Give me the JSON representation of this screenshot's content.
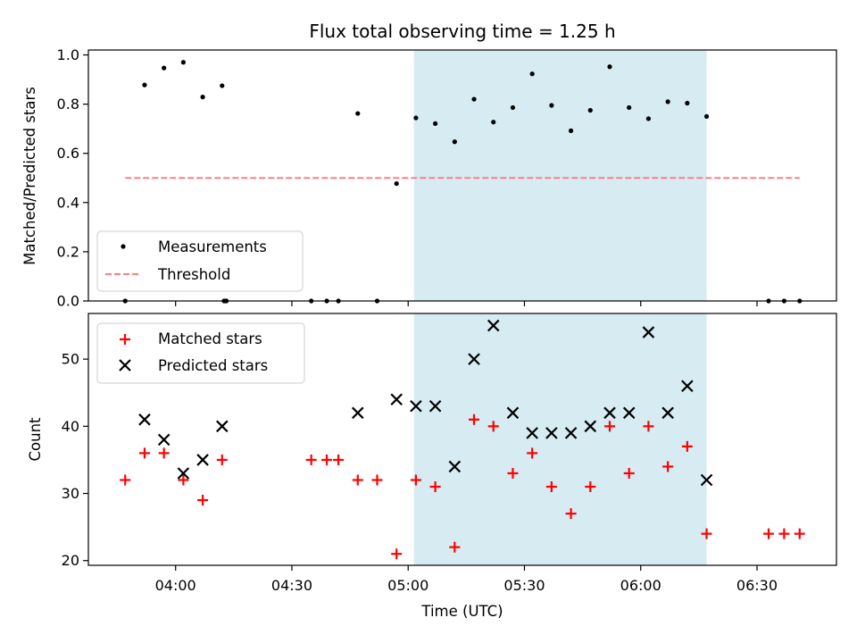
{
  "chart_data": {
    "title": "Flux total observing time = 1.25 h",
    "xlabel": "Time (UTC)",
    "x_tick_labels": [
      "04:00",
      "04:30",
      "05:00",
      "05:30",
      "06:00",
      "06:30"
    ],
    "x_tick_minutes": [
      240,
      270,
      300,
      330,
      360,
      390
    ],
    "xlim_minutes": [
      217.5,
      410.5
    ],
    "highlight_span_minutes": [
      301.5,
      377
    ],
    "highlight_color": "#add8e6",
    "panels": [
      {
        "type": "scatter",
        "ylabel": "Matched/Predicted stars",
        "ylim": [
          0,
          1.02
        ],
        "yticks": [
          0.0,
          0.2,
          0.4,
          0.6,
          0.8,
          1.0
        ],
        "ytick_labels": [
          "0.0",
          "0.2",
          "0.4",
          "0.6",
          "0.8",
          "1.0"
        ],
        "legend_position": "lower-left",
        "series": [
          {
            "name": "Measurements",
            "marker": "dot",
            "color": "#000000",
            "points": [
              [
                227,
                0.0
              ],
              [
                232,
                0.878
              ],
              [
                237,
                0.947
              ],
              [
                242,
                0.97
              ],
              [
                247,
                0.829
              ],
              [
                252,
                0.875
              ],
              [
                252.5,
                0.0
              ],
              [
                252.8,
                0.0
              ],
              [
                253.1,
                0.0
              ],
              [
                275,
                0.0
              ],
              [
                279,
                0.0
              ],
              [
                282,
                0.0
              ],
              [
                287,
                0.762
              ],
              [
                292,
                0.0
              ],
              [
                297,
                0.477
              ],
              [
                302,
                0.744
              ],
              [
                307,
                0.721
              ],
              [
                312,
                0.647
              ],
              [
                317,
                0.82
              ],
              [
                322,
                0.727
              ],
              [
                327,
                0.786
              ],
              [
                332,
                0.923
              ],
              [
                337,
                0.795
              ],
              [
                342,
                0.692
              ],
              [
                347,
                0.775
              ],
              [
                352,
                0.952
              ],
              [
                357,
                0.786
              ],
              [
                362,
                0.741
              ],
              [
                367,
                0.81
              ],
              [
                372,
                0.804
              ],
              [
                377,
                0.75
              ],
              [
                393,
                0.0
              ],
              [
                397,
                0.0
              ],
              [
                401,
                0.0
              ]
            ]
          },
          {
            "name": "Threshold",
            "marker": "dashed-line",
            "color": "#ff7f7f",
            "x_range": [
              227,
              401
            ],
            "y": 0.5
          }
        ]
      },
      {
        "type": "scatter",
        "ylabel": "Count",
        "ylim": [
          19.3,
          56.8
        ],
        "yticks": [
          20,
          30,
          40,
          50
        ],
        "ytick_labels": [
          "20",
          "30",
          "40",
          "50"
        ],
        "legend_position": "upper-left",
        "series": [
          {
            "name": "Matched stars",
            "marker": "plus",
            "color": "#ff0000",
            "points": [
              [
                227,
                32
              ],
              [
                232,
                36
              ],
              [
                237,
                36
              ],
              [
                242,
                32
              ],
              [
                247,
                29
              ],
              [
                252,
                35
              ],
              [
                275,
                35
              ],
              [
                279,
                35
              ],
              [
                282,
                35
              ],
              [
                287,
                32
              ],
              [
                292,
                32
              ],
              [
                297,
                21
              ],
              [
                302,
                32
              ],
              [
                307,
                31
              ],
              [
                312,
                22
              ],
              [
                317,
                41
              ],
              [
                322,
                40
              ],
              [
                327,
                33
              ],
              [
                332,
                36
              ],
              [
                337,
                31
              ],
              [
                342,
                27
              ],
              [
                347,
                31
              ],
              [
                352,
                40
              ],
              [
                357,
                33
              ],
              [
                362,
                40
              ],
              [
                367,
                34
              ],
              [
                372,
                37
              ],
              [
                377,
                24
              ],
              [
                393,
                24
              ],
              [
                397,
                24
              ],
              [
                401,
                24
              ]
            ]
          },
          {
            "name": "Predicted stars",
            "marker": "x",
            "color": "#000000",
            "points": [
              [
                232,
                41
              ],
              [
                237,
                38
              ],
              [
                242,
                33
              ],
              [
                247,
                35
              ],
              [
                252,
                40
              ],
              [
                287,
                42
              ],
              [
                297,
                44
              ],
              [
                302,
                43
              ],
              [
                307,
                43
              ],
              [
                312,
                34
              ],
              [
                317,
                50
              ],
              [
                322,
                55
              ],
              [
                327,
                42
              ],
              [
                332,
                39
              ],
              [
                337,
                39
              ],
              [
                342,
                39
              ],
              [
                347,
                40
              ],
              [
                352,
                42
              ],
              [
                357,
                42
              ],
              [
                362,
                54
              ],
              [
                367,
                42
              ],
              [
                372,
                46
              ],
              [
                377,
                32
              ]
            ]
          }
        ]
      }
    ]
  }
}
